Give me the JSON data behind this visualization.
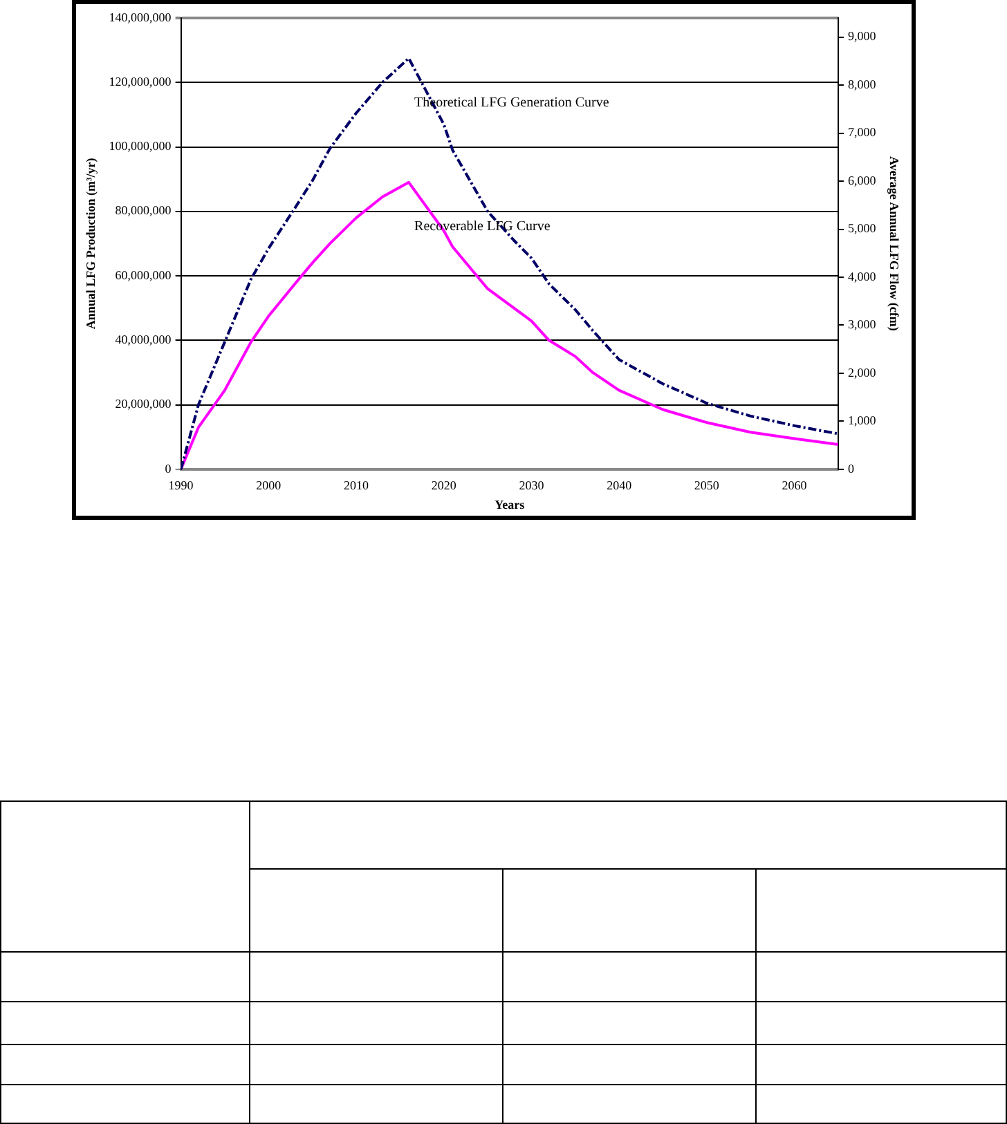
{
  "chart_data": {
    "type": "line",
    "xlabel": "Years",
    "ylabel": "Annual LFG Production (m³/yr)",
    "y2label": "Average Annual LFG Flow (cfm)",
    "x": [
      1990,
      1992,
      1995,
      1998,
      2000,
      2003,
      2005,
      2007,
      2010,
      2013,
      2016,
      2020,
      2021,
      2025,
      2028,
      2030,
      2032,
      2035,
      2037,
      2040,
      2045,
      2050,
      2055,
      2060,
      2065
    ],
    "series": [
      {
        "name": "Theoretical LFG Generation Curve",
        "color": "#000066",
        "line_style": "dashed",
        "values": [
          0,
          20000000,
          39500000,
          59000000,
          68500000,
          81000000,
          89500000,
          99500000,
          110500000,
          120000000,
          127500000,
          107000000,
          99000000,
          80000000,
          71000000,
          65500000,
          57500000,
          49500000,
          43000000,
          34000000,
          26500000,
          20500000,
          16500000,
          13500000,
          11000000
        ]
      },
      {
        "name": "Recoverable LFG Curve",
        "color": "#ff00ff",
        "line_style": "solid",
        "values": [
          0,
          13000000,
          24500000,
          39500000,
          47500000,
          57500000,
          64000000,
          70000000,
          78000000,
          84500000,
          89000000,
          74000000,
          69000000,
          56000000,
          50000000,
          46000000,
          40000000,
          35000000,
          30000000,
          24500000,
          18500000,
          14500000,
          11500000,
          9500000,
          7700000
        ]
      }
    ],
    "xlim": [
      1990,
      2065
    ],
    "xticks": [
      1990,
      2000,
      2010,
      2020,
      2030,
      2040,
      2050,
      2060
    ],
    "ylim": [
      0,
      140000000
    ],
    "yticks": [
      0,
      {
        "value": 20000000,
        "label": "20,000,000"
      },
      {
        "value": 40000000,
        "label": "40,000,000"
      },
      {
        "value": 60000000,
        "label": "60,000,000"
      },
      {
        "value": 80000000,
        "label": "80,000,000"
      },
      {
        "value": 100000000,
        "label": "100,000,000"
      },
      {
        "value": 120000000,
        "label": "120,000,000"
      },
      {
        "value": 140000000,
        "label": "140,000,000"
      }
    ],
    "y2lim": [
      0,
      9400
    ],
    "y2ticks": [
      0,
      {
        "value": 1000,
        "label": "1,000"
      },
      {
        "value": 2000,
        "label": "2,000"
      },
      {
        "value": 3000,
        "label": "3,000"
      },
      {
        "value": 4000,
        "label": "4,000"
      },
      {
        "value": 5000,
        "label": "5,000"
      },
      {
        "value": 6000,
        "label": "6,000"
      },
      {
        "value": 7000,
        "label": "7,000"
      },
      {
        "value": 8000,
        "label": "8,000"
      },
      {
        "value": 9000,
        "label": "9,000"
      }
    ],
    "grid": "y",
    "legend": false,
    "marker": "none"
  }
}
